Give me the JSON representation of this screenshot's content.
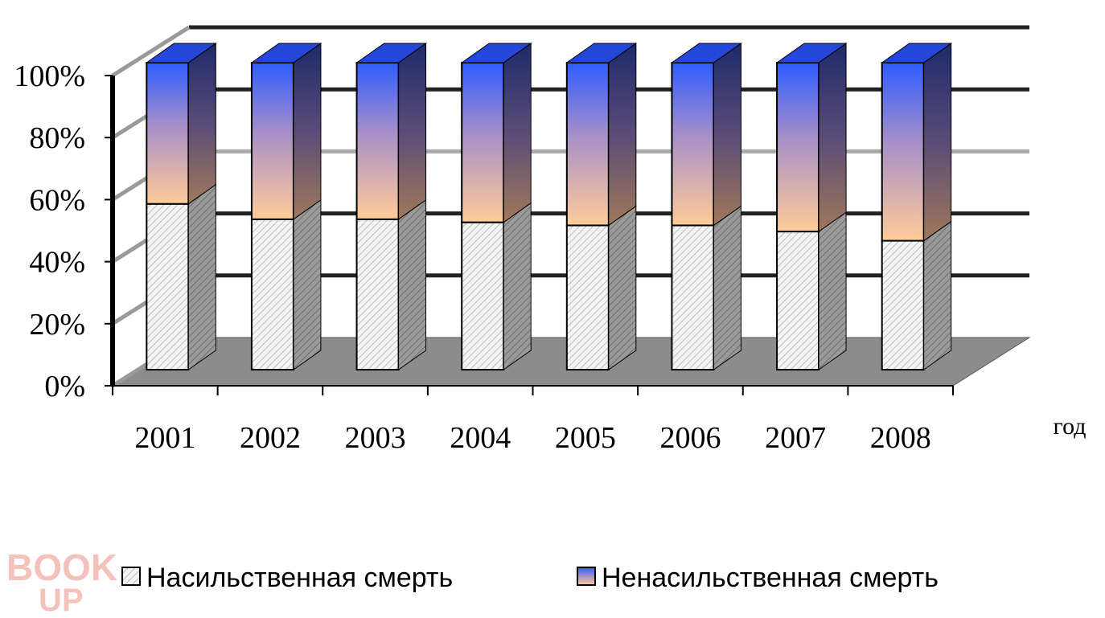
{
  "chart_data": {
    "type": "bar",
    "stacked": "percent",
    "three_d": true,
    "categories": [
      "2001",
      "2002",
      "2003",
      "2004",
      "2005",
      "2006",
      "2007",
      "2008"
    ],
    "series": [
      {
        "name": "Насильственная смерть",
        "values": [
          54,
          49,
          49,
          48,
          47,
          47,
          45,
          42
        ],
        "fill": "hatched-gray"
      },
      {
        "name": "Ненасильственная смерть",
        "values": [
          46,
          51,
          51,
          52,
          53,
          53,
          55,
          58
        ],
        "fill": "gradient-orange-blue"
      }
    ],
    "y_ticks": [
      "0%",
      "20%",
      "40%",
      "60%",
      "80%",
      "100%"
    ],
    "ylim": [
      0,
      100
    ],
    "xlabel": "год",
    "ylabel": "",
    "title": "",
    "grid": true,
    "legend": "bottom",
    "colors": {
      "top_blue": "#2f5cff",
      "mid_lavender": "#a78fc8",
      "bottom_peach": "#ffcc99",
      "side_dark": "#1e2a6a",
      "floor": "#8c8c8c",
      "hatch": "#c8c8c8",
      "watermark": "#f2b8b0"
    }
  },
  "watermark": {
    "line1": "BOOK",
    "line2": "UP"
  }
}
